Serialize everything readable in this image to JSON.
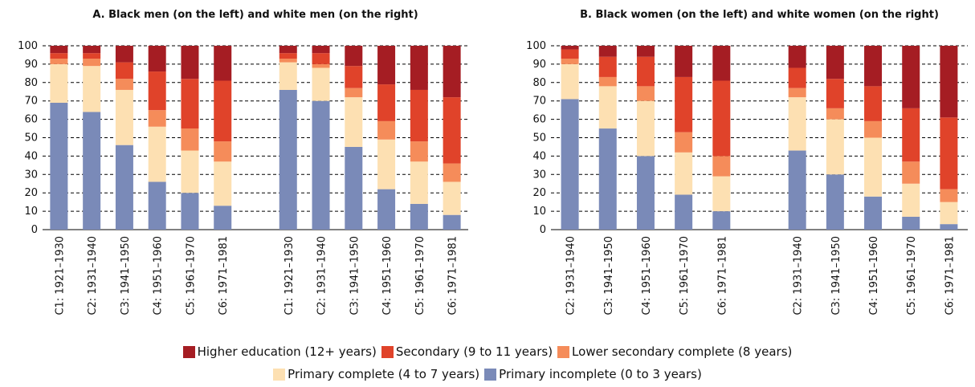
{
  "legend": [
    {
      "name": "Higher education (12+ years)",
      "color": "#a51d23"
    },
    {
      "name": "Secondary (9 to 11 years)",
      "color": "#e0432a"
    },
    {
      "name": "Lower secondary complete (8 years)",
      "color": "#f58c5a"
    },
    {
      "name": "Primary complete (4 to 7 years)",
      "color": "#fde0b2"
    },
    {
      "name": "Primary incomplete (0 to 3 years)",
      "color": "#7a8ab8"
    }
  ],
  "chart_data": [
    {
      "type": "stacked_bar",
      "title": "A. Black men (on the left) and white men (on the right)",
      "categories": [
        "C1: 1921–1930",
        "C2: 1931–1940",
        "C3: 1941–1950",
        "C4: 1951–1960",
        "C5: 1961–1970",
        "C6: 1971–1981",
        null,
        "C1: 1921–1930",
        "C2: 1931–1940",
        "C3: 1941–1950",
        "C4: 1951–1960",
        "C5: 1961–1970",
        "C6: 1971–1981"
      ],
      "series": [
        {
          "values": [
            4,
            4,
            9,
            14,
            18,
            19,
            null,
            4,
            4,
            11,
            21,
            24,
            28
          ]
        },
        {
          "values": [
            3,
            3,
            9,
            21,
            27,
            33,
            null,
            3,
            6,
            12,
            20,
            28,
            36
          ]
        },
        {
          "values": [
            3,
            4,
            6,
            9,
            12,
            11,
            null,
            2,
            2,
            5,
            10,
            11,
            10
          ]
        },
        {
          "values": [
            21,
            25,
            30,
            30,
            23,
            24,
            null,
            15,
            18,
            27,
            27,
            23,
            18
          ]
        },
        {
          "values": [
            69,
            64,
            46,
            26,
            20,
            13,
            null,
            76,
            70,
            45,
            22,
            14,
            8
          ]
        }
      ],
      "ylim": [
        0,
        100
      ],
      "yticks": [
        0,
        10,
        20,
        30,
        40,
        50,
        60,
        70,
        80,
        90,
        100
      ],
      "grid": true
    },
    {
      "type": "stacked_bar",
      "title": "B. Black women (on the left) and white women (on the right)",
      "categories": [
        "C2: 1931–1940",
        "C3: 1941–1950",
        "C4: 1951–1960",
        "C5: 1961–1970",
        "C6: 1971–1981",
        null,
        "C2: 1931–1940",
        "C3: 1941–1950",
        "C4: 1951–1960",
        "C5: 1961–1970",
        "C6: 1971–1981"
      ],
      "series": [
        {
          "values": [
            2,
            6,
            6,
            17,
            19,
            null,
            12,
            18,
            22,
            34,
            39
          ]
        },
        {
          "values": [
            5,
            11,
            16,
            30,
            41,
            null,
            11,
            16,
            19,
            29,
            39
          ]
        },
        {
          "values": [
            3,
            5,
            8,
            11,
            11,
            null,
            5,
            6,
            9,
            12,
            7
          ]
        },
        {
          "values": [
            19,
            23,
            30,
            23,
            19,
            null,
            29,
            30,
            32,
            18,
            12
          ]
        },
        {
          "values": [
            71,
            55,
            40,
            19,
            10,
            null,
            43,
            30,
            18,
            7,
            3
          ]
        }
      ],
      "ylim": [
        0,
        100
      ],
      "yticks": [
        0,
        10,
        20,
        30,
        40,
        50,
        60,
        70,
        80,
        90,
        100
      ],
      "grid": true
    }
  ]
}
